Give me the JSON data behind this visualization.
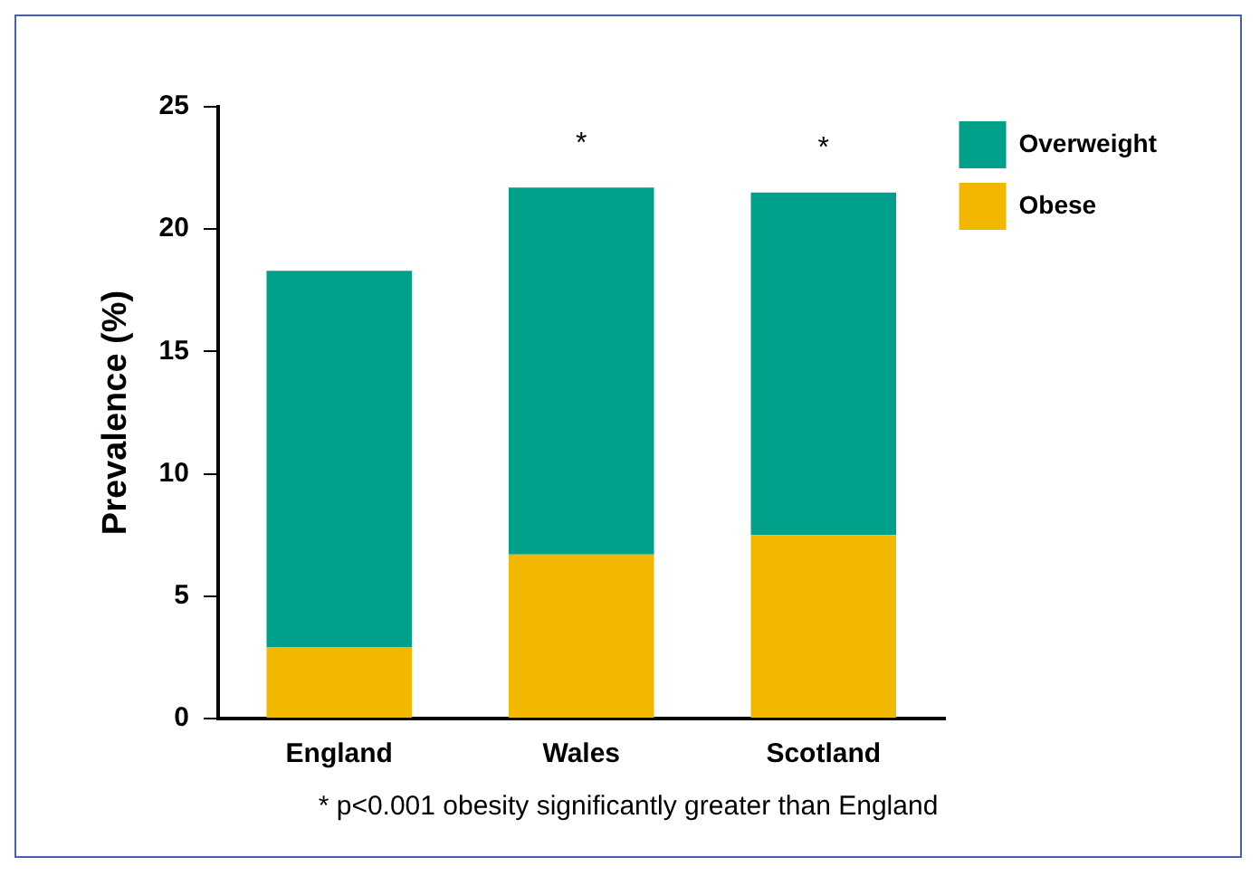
{
  "chart_data": {
    "type": "bar",
    "ylabel": "Prevalence (%)",
    "categories": [
      "England",
      "Wales",
      "Scotland"
    ],
    "stacked": true,
    "series": [
      {
        "name": "Obese",
        "color": "#f2b800",
        "values": [
          2.9,
          6.7,
          7.5
        ]
      },
      {
        "name": "Overweight",
        "color": "#00a08a",
        "values": [
          15.4,
          15.0,
          14.0
        ]
      }
    ],
    "ylim": [
      0,
      25
    ],
    "yticks": [
      0,
      5,
      10,
      15,
      20,
      25
    ],
    "grid": false,
    "legend": "top right",
    "annotations": [
      {
        "text": "*",
        "x": "Wales",
        "y": 21.7
      },
      {
        "text": "*",
        "x": "Scotland",
        "y": 21.5
      },
      "* p<0.001 obesity significantly greater than England"
    ]
  }
}
